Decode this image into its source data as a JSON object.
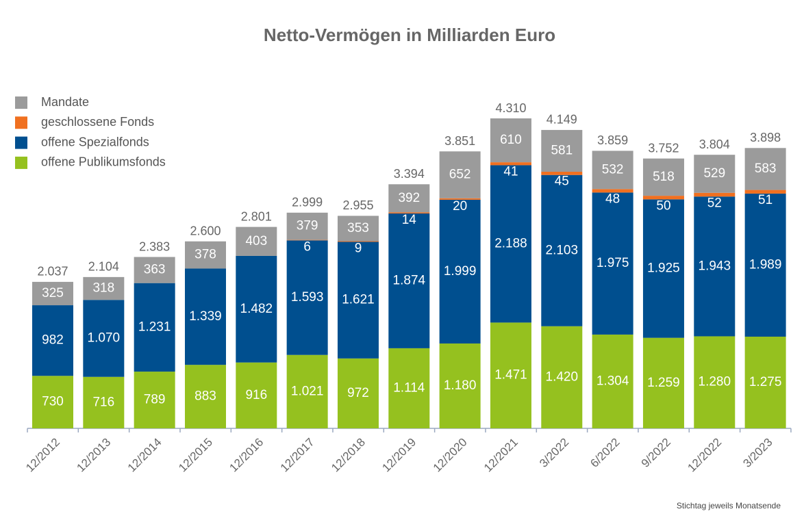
{
  "chart_data": {
    "type": "stacked_bar",
    "title": "Netto-Vermögen in Milliarden Euro",
    "note": "Stichtag  jeweils Monatsende",
    "categories": [
      "12/2012",
      "12/2013",
      "12/2014",
      "12/2015",
      "12/2016",
      "12/2017",
      "12/2018",
      "12/2019",
      "12/2020",
      "12/2021",
      "3/2022",
      "6/2022",
      "9/2022",
      "12/2022",
      "3/2023"
    ],
    "series": [
      {
        "name": "offene Publikumsfonds",
        "color": "#95c11f",
        "values": [
          730,
          716,
          789,
          883,
          916,
          1021,
          972,
          1114,
          1180,
          1471,
          1420,
          1304,
          1259,
          1280,
          1275
        ],
        "value_labels": [
          "730",
          "716",
          "789",
          "883",
          "916",
          "1.021",
          "972",
          "1.114",
          "1.180",
          "1.471",
          "1.420",
          "1.304",
          "1.259",
          "1.280",
          "1.275"
        ]
      },
      {
        "name": "offene Spezialfonds",
        "color": "#004f8f",
        "values": [
          982,
          1070,
          1231,
          1339,
          1482,
          1593,
          1621,
          1874,
          1999,
          2188,
          2103,
          1975,
          1925,
          1943,
          1989
        ],
        "value_labels": [
          "982",
          "1.070",
          "1.231",
          "1.339",
          "1.482",
          "1.593",
          "1.621",
          "1.874",
          "1.999",
          "2.188",
          "2.103",
          "1.975",
          "1.925",
          "1.943",
          "1.989"
        ]
      },
      {
        "name": "geschlossene Fonds",
        "color": "#f07020",
        "values": [
          null,
          null,
          null,
          null,
          null,
          6,
          9,
          14,
          20,
          41,
          45,
          48,
          50,
          52,
          51
        ]
      },
      {
        "name": "Mandate",
        "color": "#9b9b9b",
        "values": [
          325,
          318,
          363,
          378,
          403,
          379,
          353,
          392,
          652,
          610,
          581,
          532,
          518,
          529,
          583
        ]
      }
    ],
    "totals": {
      "values": [
        2037,
        2104,
        2383,
        2600,
        2801,
        2999,
        2955,
        3394,
        3851,
        4310,
        4149,
        3859,
        3752,
        3804,
        3898
      ],
      "value_labels": [
        "2.037",
        "2.104",
        "2.383",
        "2.600",
        "2.801",
        "2.999",
        "2.955",
        "3.394",
        "3.851",
        "4.310",
        "4.149",
        "3.859",
        "3.752",
        "3.804",
        "3.898"
      ]
    }
  }
}
